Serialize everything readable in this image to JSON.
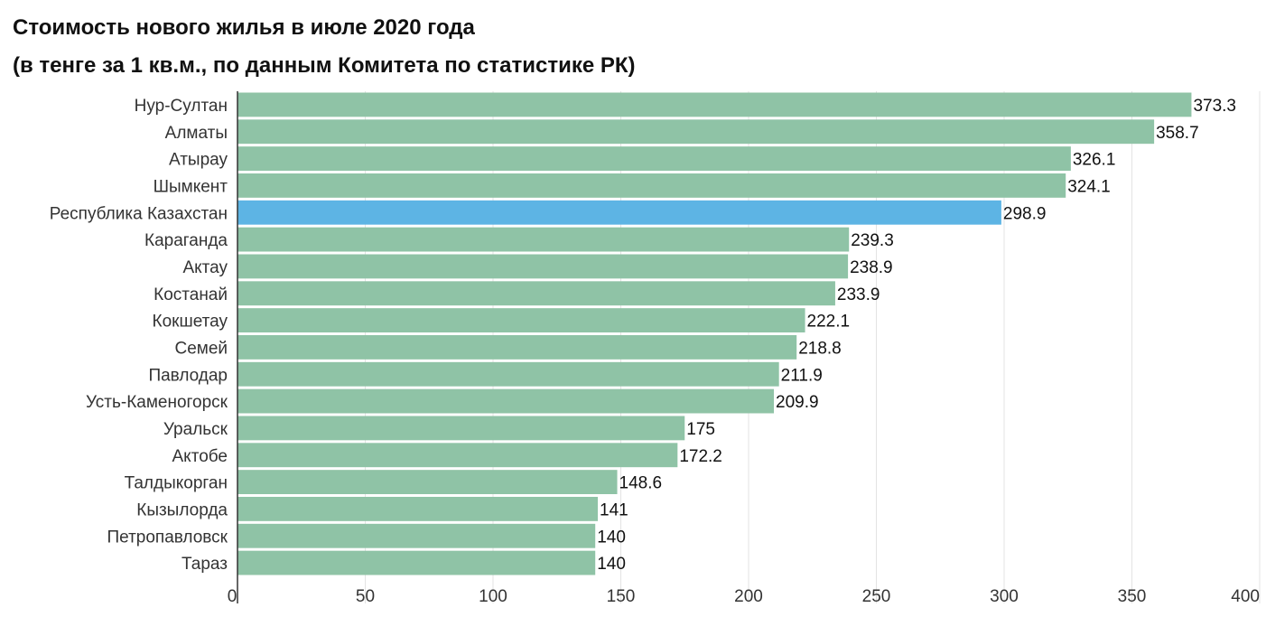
{
  "chart_data": {
    "type": "bar",
    "orientation": "horizontal",
    "title": "Стоимость нового жилья в июле 2020 года",
    "subtitle": "(в тенге за 1 кв.м., по данным Комитета по статистике РК)",
    "xlabel": "",
    "ylabel": "",
    "xlim": [
      0,
      400
    ],
    "xticks": [
      0,
      50,
      100,
      150,
      200,
      250,
      300,
      350,
      400
    ],
    "grid": "vertical",
    "legend": "none",
    "colors": {
      "default": "#8fc3a6",
      "highlight": "#5db4e4"
    },
    "highlight_category": "Республика Казахстан",
    "categories": [
      "Нур-Султан",
      "Алматы",
      "Атырау",
      "Шымкент",
      "Республика Казахстан",
      "Караганда",
      "Актау",
      "Костанай",
      "Кокшетау",
      "Семей",
      "Павлодар",
      "Усть-Каменогорск",
      "Уральск",
      "Актобе",
      "Талдыкорган",
      "Кызылорда",
      "Петропавловск",
      "Тараз"
    ],
    "values": [
      373.3,
      358.7,
      326.1,
      324.1,
      298.9,
      239.3,
      238.9,
      233.9,
      222.1,
      218.8,
      211.9,
      209.9,
      175,
      172.2,
      148.6,
      141,
      140,
      140
    ]
  }
}
